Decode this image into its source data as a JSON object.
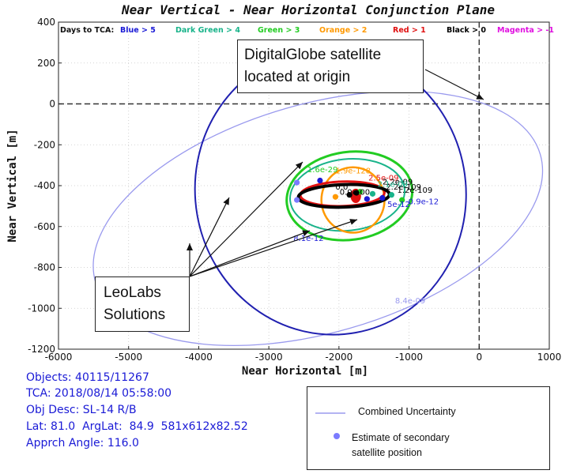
{
  "chart_data": {
    "type": "scatter",
    "title": "Near Vertical - Near Horizontal Conjunction Plane",
    "xlabel": "Near Horizontal [m]",
    "ylabel": "Near Vertical [m]",
    "xlim": [
      -6000,
      1000
    ],
    "ylim": [
      -1200,
      400
    ],
    "xticks": [
      -6000,
      -5000,
      -4000,
      -3000,
      -2000,
      -1000,
      0,
      1000
    ],
    "yticks": [
      400,
      200,
      0,
      -200,
      -400,
      -600,
      -800,
      -1000,
      -1200
    ],
    "grid": true,
    "legend_title": "Days to TCA:",
    "legend": [
      {
        "label": "Blue > 5",
        "color": "#1a1ad6"
      },
      {
        "label": "Dark Green > 4",
        "color": "#19b38a"
      },
      {
        "label": "Green > 3",
        "color": "#22cc22"
      },
      {
        "label": "Orange > 2",
        "color": "#ff9900"
      },
      {
        "label": "Red > 1",
        "color": "#e01010"
      },
      {
        "label": "Black > 0",
        "color": "#000000"
      },
      {
        "label": "Magenta > -1",
        "color": "#e010e0"
      }
    ],
    "ellipses": [
      {
        "color": "#9a9aee",
        "width": 1.3,
        "cx": -2300,
        "cy": -560,
        "rx": 3300,
        "ry": 560,
        "angle_deg": -16
      },
      {
        "color": "#2020b0",
        "width": 2,
        "cx": -2120,
        "cy": -430,
        "rx": 1930,
        "ry": 700,
        "angle_deg": -10
      },
      {
        "color": "#22cc22",
        "width": 3,
        "cx": -1850,
        "cy": -450,
        "rx": 900,
        "ry": 215,
        "angle_deg": -8
      },
      {
        "color": "#19b38a",
        "width": 2,
        "cx": -1880,
        "cy": -445,
        "rx": 820,
        "ry": 175,
        "angle_deg": -6
      },
      {
        "color": "#ff9900",
        "width": 2.5,
        "cx": -1800,
        "cy": -470,
        "rx": 450,
        "ry": 160,
        "angle_deg": 0
      },
      {
        "color": "#e01010",
        "width": 3,
        "cx": -1950,
        "cy": -440,
        "rx": 600,
        "ry": 60,
        "angle_deg": -2
      },
      {
        "color": "#000000",
        "width": 4,
        "cx": -1930,
        "cy": -450,
        "rx": 650,
        "ry": 55,
        "angle_deg": -2
      },
      {
        "color": "#e01010",
        "width": 0,
        "cx": -1760,
        "cy": -450,
        "rx": 75,
        "ry": 35,
        "angle_deg": 0,
        "fill": true
      }
    ],
    "points": [
      {
        "x": -2600,
        "y": -385,
        "color": "#7b7bff"
      },
      {
        "x": -2600,
        "y": -470,
        "color": "#7b7bff"
      },
      {
        "x": -2270,
        "y": -375,
        "color": "#1a1ad6"
      },
      {
        "x": -1520,
        "y": -440,
        "color": "#19b38a"
      },
      {
        "x": -1380,
        "y": -460,
        "color": "#1a1ad6"
      },
      {
        "x": -1250,
        "y": -445,
        "color": "#19b38a"
      },
      {
        "x": -1100,
        "y": -470,
        "color": "#22cc22"
      },
      {
        "x": -1700,
        "y": -430,
        "color": "#22cc22"
      },
      {
        "x": -1600,
        "y": -465,
        "color": "#1a1ad6"
      },
      {
        "x": -2050,
        "y": -455,
        "color": "#ff9900"
      },
      {
        "x": -1750,
        "y": -435,
        "color": "#000000"
      },
      {
        "x": -1850,
        "y": -445,
        "color": "#000000"
      }
    ],
    "probability_labels": [
      {
        "text": "1.6e-29",
        "x": -2450,
        "y": -335,
        "color": "#22cc22"
      },
      {
        "text": "1.9e-128",
        "x": -2050,
        "y": -340,
        "color": "#ff9900"
      },
      {
        "text": "8.1e-12",
        "x": -2650,
        "y": -670,
        "color": "#1a1ad6"
      },
      {
        "text": "8.4e-09",
        "x": -1200,
        "y": -975,
        "color": "#9a9aee"
      },
      {
        "text": "2.5e-09",
        "x": -1580,
        "y": -375,
        "color": "#e01010"
      },
      {
        "text": "2.2e-109",
        "x": -1330,
        "y": -420,
        "color": "#000000"
      },
      {
        "text": "2.2e-09",
        "x": -1380,
        "y": -395,
        "color": "#000000"
      },
      {
        "text": "1.2e-109",
        "x": -1170,
        "y": -435,
        "color": "#000000"
      },
      {
        "text": "0.0",
        "x": -2050,
        "y": -420,
        "color": "#000000"
      },
      {
        "text": "0.0e-00",
        "x": -1990,
        "y": -445,
        "color": "#000000"
      },
      {
        "text": "0.9e-12",
        "x": -1010,
        "y": -490,
        "color": "#1a1ad6"
      },
      {
        "text": "5e-12",
        "x": -1310,
        "y": -505,
        "color": "#1a1ad6"
      },
      {
        "text": "2.1e-09",
        "x": -1450,
        "y": -405,
        "color": "#19b38a"
      }
    ]
  },
  "annotations": {
    "digitalglobe": [
      "DigitalGlobe satellite",
      "located at origin"
    ],
    "leolabs": [
      "LeoLabs",
      "Solutions"
    ]
  },
  "info": {
    "objects": "Objects: 40115/11267",
    "tca": "TCA: 2018/08/14 05:58:00",
    "obj_desc": "Obj Desc: SL-14 R/B",
    "lat": "Lat: 81.0  ArgLat:  84.9  581x612x82.52",
    "approach": "Apprch Angle: 116.0"
  },
  "legend_box": {
    "combined": "Combined Uncertainty",
    "estimate": [
      "Estimate of secondary",
      "satellite position"
    ],
    "line_color": "#9a9aee",
    "dot_color": "#7b7bff"
  }
}
